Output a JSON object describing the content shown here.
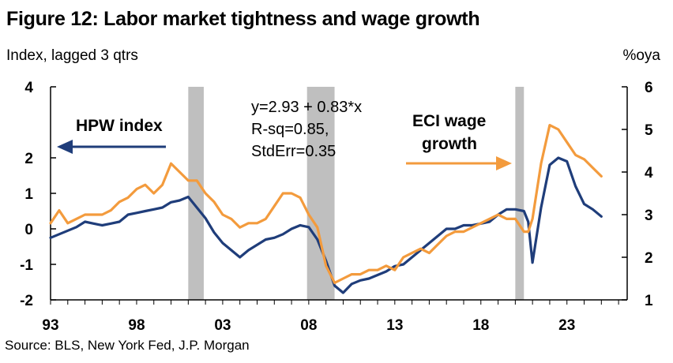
{
  "title": "Figure 12: Labor market tightness and wage growth",
  "subtitle_left": "Index, lagged 3 qtrs",
  "subtitle_right": "%oya",
  "source": "Source: BLS, New York Fed, J.P. Morgan",
  "colors": {
    "hpw": "#1f3d7a",
    "eci": "#f39b3d",
    "recession": "#bfbfbf"
  },
  "chart_data": {
    "type": "line",
    "title": "Figure 12: Labor market tightness and wage growth",
    "xlabel": "",
    "ylabel_left": "Index, lagged 3 qtrs",
    "ylabel_right": "%oya",
    "x_ticks": [
      "93",
      "98",
      "03",
      "08",
      "13",
      "18",
      "23"
    ],
    "x_tick_years": [
      1993,
      1998,
      2003,
      2008,
      2013,
      2018,
      2023
    ],
    "xlim": [
      1993,
      2026.5
    ],
    "ylim_left": [
      -2,
      4
    ],
    "ylim_right": [
      1,
      6
    ],
    "yticks_left": [
      "4",
      "2",
      "1",
      "0",
      "-1",
      "-2"
    ],
    "ytick_values_left": [
      4,
      2,
      1,
      0,
      -1,
      -2
    ],
    "yticks_right": [
      "6",
      "5",
      "4",
      "3",
      "2",
      "1"
    ],
    "ytick_values_right": [
      6,
      5,
      4,
      3,
      2,
      1
    ],
    "recession_shading": [
      [
        2001.0,
        2001.9
      ],
      [
        2007.9,
        2009.5
      ],
      [
        2020.0,
        2020.5
      ]
    ],
    "annotations": {
      "hpw_label": "HPW index",
      "eci_label_line1": "ECI wage",
      "eci_label_line2": "growth",
      "regression_line1": "y=2.93 + 0.83*x",
      "regression_line2": "R-sq=0.85,",
      "regression_line3": "StdErr=0.35"
    },
    "series": [
      {
        "name": "HPW index",
        "axis": "left",
        "x": [
          1993.0,
          1993.5,
          1994.0,
          1994.5,
          1995.0,
          1995.5,
          1996.0,
          1996.5,
          1997.0,
          1997.5,
          1998.0,
          1998.5,
          1999.0,
          1999.5,
          2000.0,
          2000.5,
          2001.0,
          2001.5,
          2002.0,
          2002.5,
          2003.0,
          2003.5,
          2004.0,
          2004.5,
          2005.0,
          2005.5,
          2006.0,
          2006.5,
          2007.0,
          2007.5,
          2008.0,
          2008.5,
          2009.0,
          2009.5,
          2010.0,
          2010.5,
          2011.0,
          2011.5,
          2012.0,
          2012.5,
          2013.0,
          2013.5,
          2014.0,
          2014.5,
          2015.0,
          2015.5,
          2016.0,
          2016.5,
          2017.0,
          2017.5,
          2018.0,
          2018.5,
          2019.0,
          2019.5,
          2020.0,
          2020.5,
          2020.75,
          2021.0,
          2021.5,
          2022.0,
          2022.5,
          2023.0,
          2023.5,
          2024.0,
          2024.5,
          2025.0
        ],
        "values": [
          -0.25,
          -0.15,
          -0.05,
          0.05,
          0.2,
          0.15,
          0.1,
          0.15,
          0.2,
          0.4,
          0.45,
          0.5,
          0.55,
          0.6,
          0.75,
          0.8,
          0.9,
          0.6,
          0.3,
          -0.1,
          -0.4,
          -0.6,
          -0.8,
          -0.6,
          -0.45,
          -0.3,
          -0.25,
          -0.15,
          0.0,
          0.1,
          0.05,
          -0.3,
          -0.9,
          -1.6,
          -1.8,
          -1.55,
          -1.45,
          -1.4,
          -1.3,
          -1.2,
          -1.05,
          -1.0,
          -0.8,
          -0.6,
          -0.4,
          -0.2,
          0.0,
          0.0,
          0.1,
          0.1,
          0.15,
          0.2,
          0.4,
          0.55,
          0.55,
          0.5,
          0.2,
          -0.95,
          0.6,
          1.8,
          2.0,
          1.9,
          1.2,
          0.7,
          0.55,
          0.35
        ]
      },
      {
        "name": "ECI wage growth",
        "axis": "right",
        "x": [
          1993.0,
          1993.5,
          1994.0,
          1994.5,
          1995.0,
          1995.5,
          1996.0,
          1996.5,
          1997.0,
          1997.5,
          1998.0,
          1998.5,
          1999.0,
          1999.5,
          2000.0,
          2000.5,
          2001.0,
          2001.5,
          2002.0,
          2002.5,
          2003.0,
          2003.5,
          2004.0,
          2004.5,
          2005.0,
          2005.5,
          2006.0,
          2006.5,
          2007.0,
          2007.5,
          2008.0,
          2008.5,
          2009.0,
          2009.5,
          2010.0,
          2010.5,
          2011.0,
          2011.5,
          2012.0,
          2012.5,
          2013.0,
          2013.5,
          2014.0,
          2014.5,
          2015.0,
          2015.5,
          2016.0,
          2016.5,
          2017.0,
          2017.5,
          2018.0,
          2018.5,
          2019.0,
          2019.5,
          2020.0,
          2020.5,
          2020.75,
          2021.0,
          2021.5,
          2022.0,
          2022.5,
          2023.0,
          2023.5,
          2024.0,
          2024.5,
          2025.0
        ],
        "values": [
          2.8,
          3.1,
          2.8,
          2.9,
          3.0,
          3.0,
          3.0,
          3.1,
          3.3,
          3.4,
          3.6,
          3.7,
          3.5,
          3.7,
          4.2,
          4.0,
          3.8,
          3.8,
          3.5,
          3.3,
          3.0,
          2.9,
          2.7,
          2.8,
          2.8,
          2.9,
          3.2,
          3.5,
          3.5,
          3.4,
          3.0,
          2.7,
          1.8,
          1.4,
          1.5,
          1.6,
          1.6,
          1.7,
          1.7,
          1.8,
          1.7,
          2.0,
          2.1,
          2.2,
          2.1,
          2.3,
          2.5,
          2.6,
          2.6,
          2.7,
          2.8,
          2.9,
          3.0,
          2.9,
          2.9,
          2.6,
          2.6,
          2.9,
          4.2,
          5.1,
          5.0,
          4.7,
          4.4,
          4.3,
          4.1,
          3.9
        ]
      }
    ],
    "grid": false,
    "legend": "none (inline labels)"
  }
}
